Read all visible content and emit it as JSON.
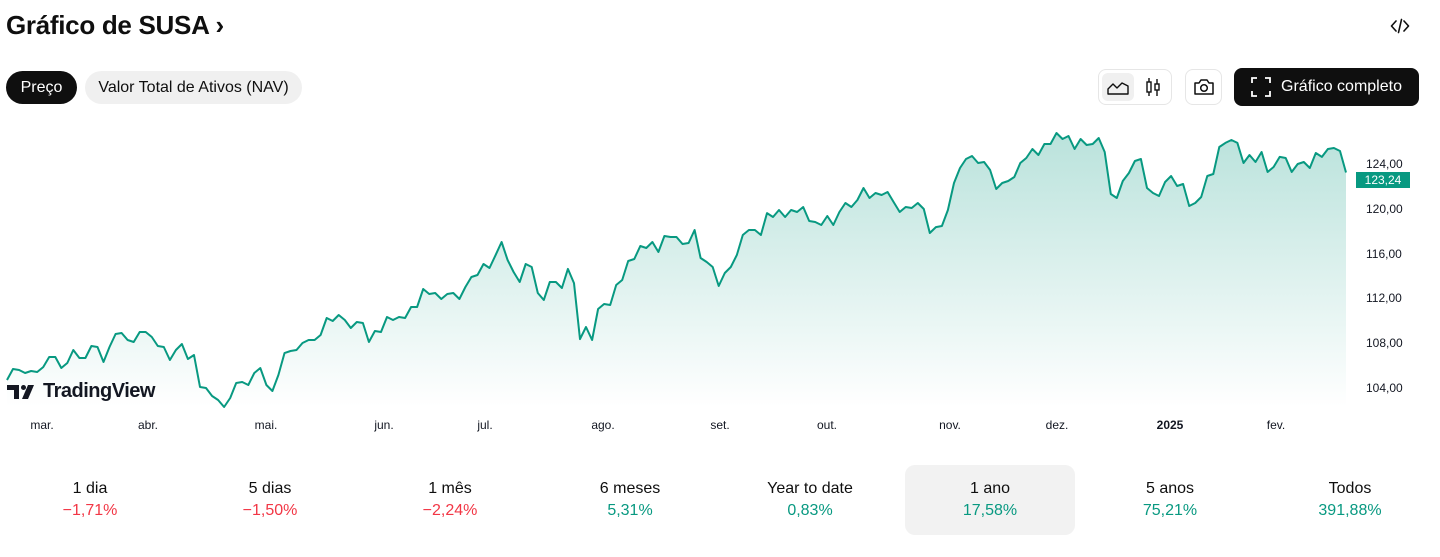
{
  "header": {
    "title": "Gráfico de SUSA",
    "title_chevron": "›",
    "embed_icon": "code-icon"
  },
  "tabs": [
    {
      "label": "Preço",
      "active": true
    },
    {
      "label": "Valor Total de Ativos (NAV)",
      "active": false
    }
  ],
  "toolbar": {
    "chart_types": [
      {
        "icon": "area-chart-icon",
        "active": true
      },
      {
        "icon": "candlestick-icon",
        "active": false
      }
    ],
    "snapshot_icon": "camera-icon",
    "full_chart_label": "Gráfico completo",
    "full_chart_icon": "fullscreen-icon"
  },
  "colors": {
    "line": "#089981",
    "negative": "#f23645",
    "positive": "#089981",
    "selected_bg": "#f2f2f2"
  },
  "watermark": "TradingView",
  "chart_data": {
    "type": "area",
    "x_tick_labels": [
      "mar.",
      "abr.",
      "mai.",
      "jun.",
      "jul.",
      "ago.",
      "set.",
      "out.",
      "nov.",
      "dez.",
      "2025",
      "fev."
    ],
    "y_tick_labels": [
      "104,00",
      "108,00",
      "112,00",
      "116,00",
      "120,00",
      "124,00"
    ],
    "y_ticks": [
      104,
      108,
      112,
      116,
      120,
      124
    ],
    "ylim": [
      102,
      127
    ],
    "last_value_label": "123,24",
    "grid": false,
    "values": [
      104.71,
      105.7,
      105.61,
      105.34,
      105.52,
      105.43,
      105.87,
      106.77,
      106.77,
      105.79,
      106.23,
      107.39,
      106.68,
      106.68,
      107.75,
      107.66,
      106.32,
      107.66,
      108.82,
      108.91,
      108.29,
      108.11,
      109.0,
      109.0,
      108.55,
      107.75,
      107.66,
      106.5,
      107.39,
      107.93,
      106.59,
      106.95,
      104.09,
      104.0,
      103.29,
      102.93,
      102.3,
      103.11,
      104.45,
      104.54,
      104.27,
      105.34,
      105.79,
      104.27,
      103.73,
      105.16,
      107.12,
      107.3,
      107.39,
      108.02,
      108.29,
      108.29,
      108.73,
      110.25,
      109.98,
      110.52,
      110.07,
      109.36,
      109.89,
      109.8,
      108.11,
      109.09,
      109.0,
      110.34,
      110.07,
      110.34,
      110.25,
      111.23,
      111.23,
      112.84,
      112.39,
      112.48,
      111.95,
      112.39,
      112.48,
      111.95,
      113.02,
      113.91,
      114.09,
      115.07,
      114.71,
      115.87,
      117.04,
      115.43,
      114.36,
      113.46,
      115.07,
      114.8,
      112.48,
      111.86,
      113.46,
      113.46,
      112.93,
      114.63,
      113.37,
      108.37,
      109.45,
      108.29,
      111.05,
      111.5,
      111.41,
      113.2,
      113.64,
      115.34,
      115.52,
      116.68,
      116.5,
      117.04,
      116.14,
      117.57,
      117.48,
      117.48,
      116.86,
      116.95,
      118.11,
      115.61,
      115.25,
      114.8,
      113.11,
      114.27,
      114.8,
      115.87,
      117.66,
      118.11,
      118.11,
      117.66,
      119.62,
      119.27,
      119.89,
      119.27,
      119.89,
      119.71,
      120.16,
      118.91,
      118.82,
      118.55,
      119.36,
      118.55,
      119.71,
      120.52,
      120.16,
      120.79,
      121.86,
      120.96,
      121.41,
      121.23,
      121.5,
      120.61,
      119.71,
      120.16,
      120.07,
      120.52,
      119.98,
      117.84,
      118.37,
      118.46,
      119.89,
      122.3,
      123.64,
      124.45,
      124.71,
      124.09,
      124.18,
      123.46,
      121.77,
      122.3,
      122.48,
      122.84,
      124.09,
      124.54,
      125.34,
      124.8,
      125.79,
      125.79,
      126.77,
      126.23,
      126.5,
      125.34,
      126.23,
      125.7,
      125.79,
      126.32,
      125.07,
      121.32,
      120.96,
      122.48,
      123.2,
      124.27,
      124.45,
      121.86,
      121.41,
      121.14,
      122.39,
      122.93,
      122.04,
      122.21,
      120.25,
      120.52,
      121.05,
      122.93,
      123.11,
      125.52,
      125.88,
      126.14,
      125.88,
      124.09,
      124.8,
      124.18,
      125.07,
      123.29,
      123.73,
      124.63,
      124.54,
      123.29,
      124.0,
      124.18,
      123.64,
      124.98,
      124.63,
      125.34,
      125.43,
      125.16,
      123.24
    ]
  },
  "periods": [
    {
      "label": "1 dia",
      "value": "−1,71%",
      "trend": "neg",
      "selected": false
    },
    {
      "label": "5 dias",
      "value": "−1,50%",
      "trend": "neg",
      "selected": false
    },
    {
      "label": "1 mês",
      "value": "−2,24%",
      "trend": "neg",
      "selected": false
    },
    {
      "label": "6 meses",
      "value": "5,31%",
      "trend": "pos",
      "selected": false
    },
    {
      "label": "Year to date",
      "value": "0,83%",
      "trend": "pos",
      "selected": false
    },
    {
      "label": "1 ano",
      "value": "17,58%",
      "trend": "pos",
      "selected": true
    },
    {
      "label": "5 anos",
      "value": "75,21%",
      "trend": "pos",
      "selected": false
    },
    {
      "label": "Todos",
      "value": "391,88%",
      "trend": "pos",
      "selected": false
    }
  ]
}
